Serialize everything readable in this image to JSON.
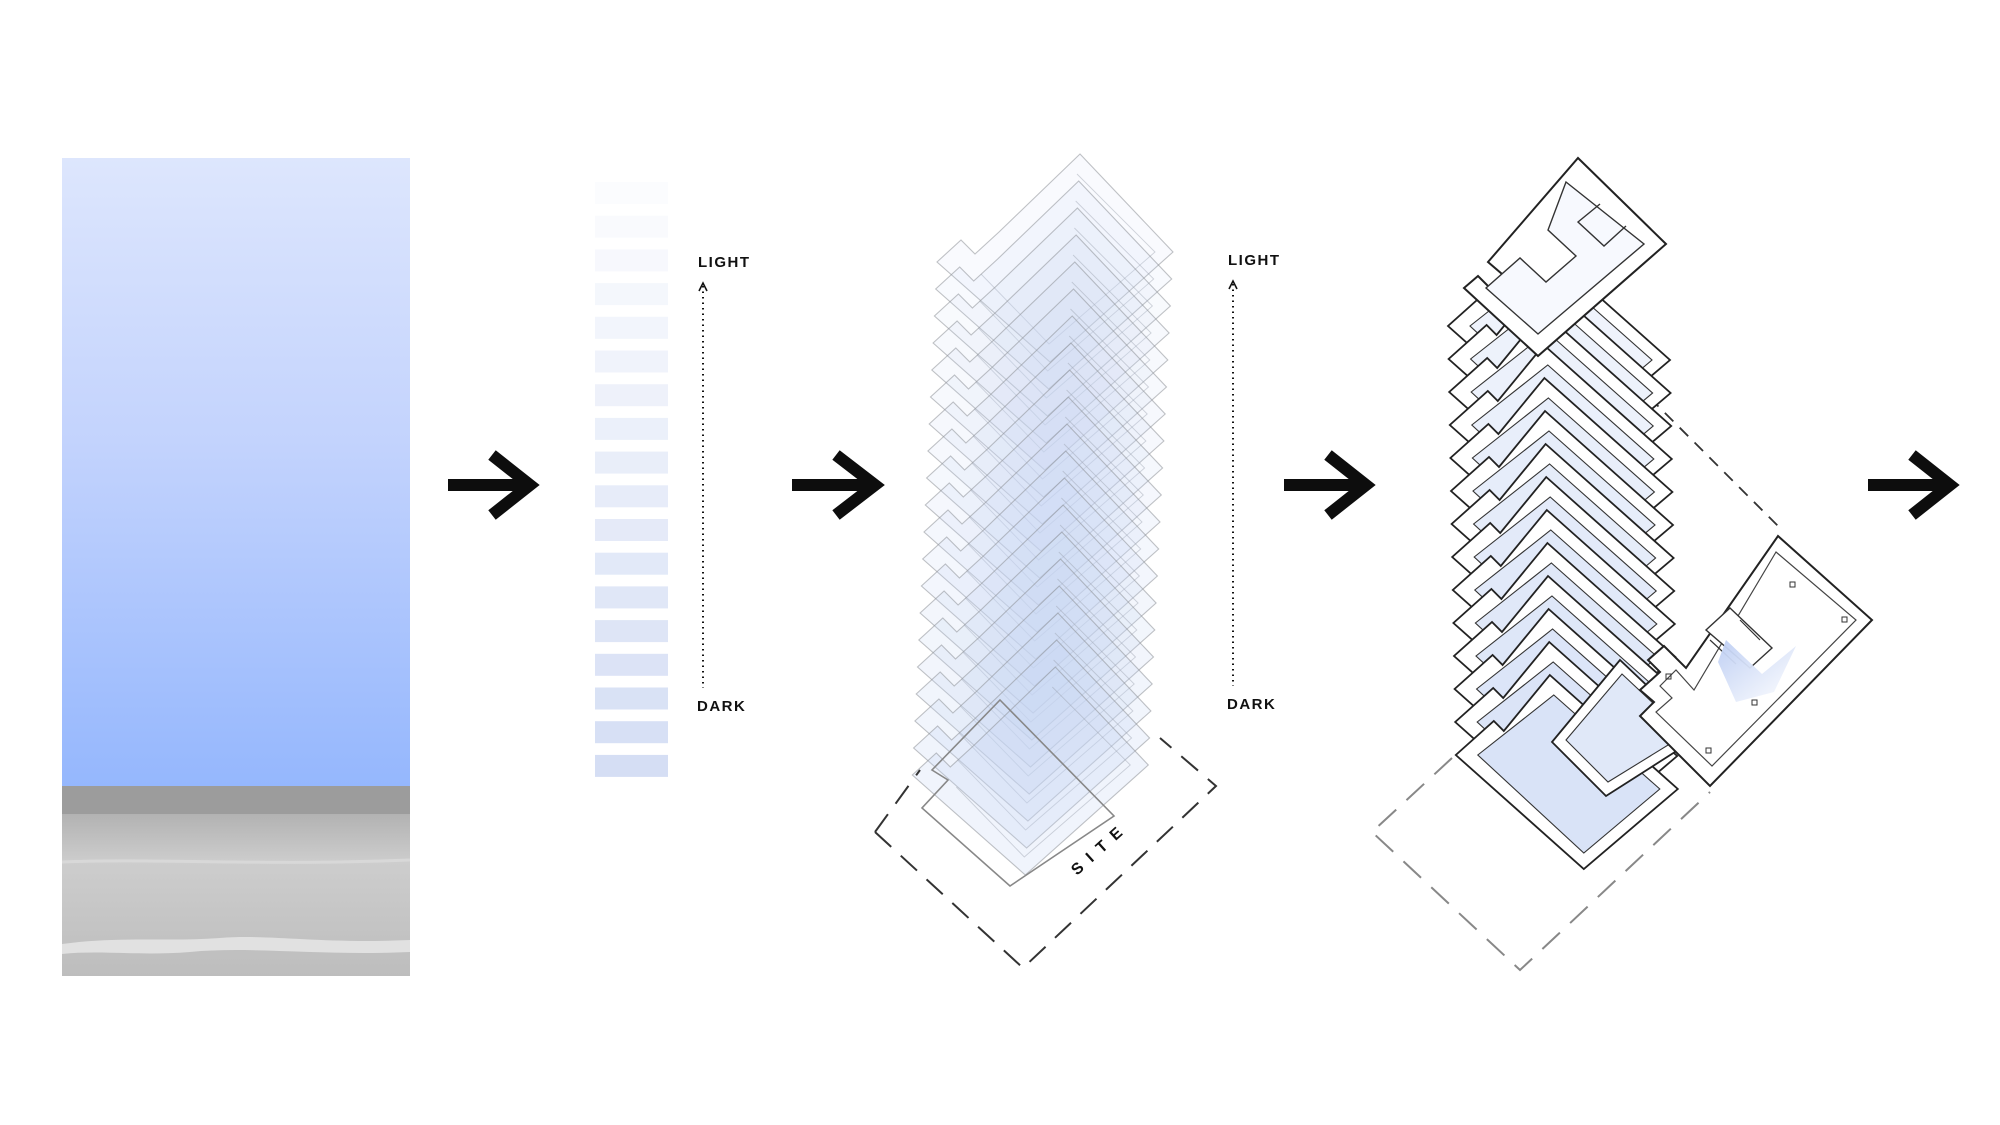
{
  "gradient_scale": {
    "light_label": "LIGHT",
    "dark_label": "DARK",
    "swatch_count": 18,
    "color_light": "#fbfcfe",
    "color_dark": "#d5def4"
  },
  "stacked_plates": {
    "light_label": "LIGHT",
    "dark_label": "DARK",
    "site_label": "SITE"
  },
  "colors": {
    "sky_top": "#dde6fd",
    "sky_bottom": "#95b7fd",
    "plate_fill": "#c6d5f3",
    "arrow": "#0d0d0d",
    "outline": "#222222"
  },
  "icons": [
    "arrow-right-icon",
    "arrow-right-icon",
    "arrow-right-icon",
    "arrow-right-icon"
  ]
}
